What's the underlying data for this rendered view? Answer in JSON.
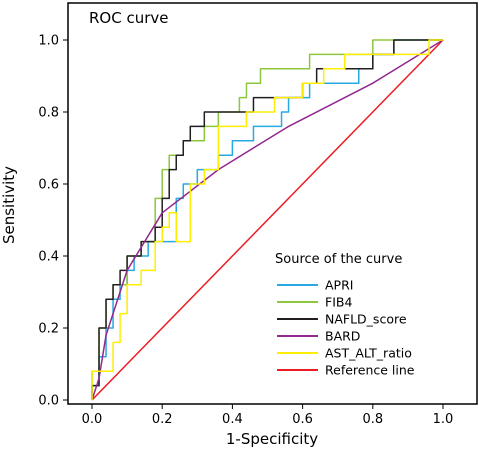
{
  "chart_data": {
    "type": "line",
    "title": "ROC curve",
    "xlabel": "1-Specificity",
    "ylabel": "Sensitivity",
    "xlim": [
      -0.02,
      1.0
    ],
    "ylim": [
      0.0,
      1.0
    ],
    "xticks": [
      0.0,
      0.2,
      0.4,
      0.6,
      0.8,
      1.0
    ],
    "yticks": [
      0.0,
      0.2,
      0.4,
      0.6,
      0.8,
      1.0
    ],
    "xtick_labels": [
      "0.0",
      "0.2",
      "0.4",
      "0.6",
      "0.8",
      "1.0"
    ],
    "ytick_labels": [
      "0.0",
      "0.2",
      "0.4",
      "0.6",
      "0.8",
      "1.0"
    ],
    "grid": false,
    "legend_title": "Source of the curve",
    "legend_position": "lower-right",
    "series": [
      {
        "name": "APRI",
        "color": "#29a9e1",
        "points": [
          [
            0,
            0
          ],
          [
            0,
            0.04
          ],
          [
            0.02,
            0.04
          ],
          [
            0.02,
            0.12
          ],
          [
            0.04,
            0.12
          ],
          [
            0.04,
            0.2
          ],
          [
            0.06,
            0.2
          ],
          [
            0.06,
            0.28
          ],
          [
            0.08,
            0.28
          ],
          [
            0.08,
            0.32
          ],
          [
            0.1,
            0.32
          ],
          [
            0.1,
            0.36
          ],
          [
            0.12,
            0.36
          ],
          [
            0.12,
            0.4
          ],
          [
            0.16,
            0.4
          ],
          [
            0.16,
            0.44
          ],
          [
            0.24,
            0.44
          ],
          [
            0.24,
            0.56
          ],
          [
            0.26,
            0.56
          ],
          [
            0.26,
            0.6
          ],
          [
            0.3,
            0.6
          ],
          [
            0.3,
            0.64
          ],
          [
            0.36,
            0.64
          ],
          [
            0.36,
            0.68
          ],
          [
            0.4,
            0.68
          ],
          [
            0.4,
            0.72
          ],
          [
            0.46,
            0.72
          ],
          [
            0.46,
            0.76
          ],
          [
            0.54,
            0.76
          ],
          [
            0.54,
            0.8
          ],
          [
            0.56,
            0.8
          ],
          [
            0.56,
            0.84
          ],
          [
            0.62,
            0.84
          ],
          [
            0.62,
            0.88
          ],
          [
            0.76,
            0.88
          ],
          [
            0.76,
            0.92
          ],
          [
            0.8,
            0.92
          ],
          [
            0.8,
            0.96
          ],
          [
            0.86,
            0.96
          ],
          [
            0.86,
            1.0
          ],
          [
            1.0,
            1.0
          ]
        ]
      },
      {
        "name": "FIB4",
        "color": "#8dc63f",
        "points": [
          [
            0,
            0
          ],
          [
            0,
            0.08
          ],
          [
            0.02,
            0.08
          ],
          [
            0.02,
            0.2
          ],
          [
            0.04,
            0.2
          ],
          [
            0.04,
            0.28
          ],
          [
            0.06,
            0.28
          ],
          [
            0.06,
            0.32
          ],
          [
            0.1,
            0.32
          ],
          [
            0.1,
            0.4
          ],
          [
            0.14,
            0.4
          ],
          [
            0.14,
            0.44
          ],
          [
            0.18,
            0.44
          ],
          [
            0.18,
            0.56
          ],
          [
            0.2,
            0.56
          ],
          [
            0.2,
            0.64
          ],
          [
            0.22,
            0.64
          ],
          [
            0.22,
            0.68
          ],
          [
            0.26,
            0.68
          ],
          [
            0.26,
            0.72
          ],
          [
            0.32,
            0.72
          ],
          [
            0.32,
            0.76
          ],
          [
            0.36,
            0.76
          ],
          [
            0.36,
            0.8
          ],
          [
            0.42,
            0.8
          ],
          [
            0.42,
            0.84
          ],
          [
            0.44,
            0.84
          ],
          [
            0.44,
            0.88
          ],
          [
            0.48,
            0.88
          ],
          [
            0.48,
            0.92
          ],
          [
            0.62,
            0.92
          ],
          [
            0.62,
            0.96
          ],
          [
            0.8,
            0.96
          ],
          [
            0.8,
            1.0
          ],
          [
            1.0,
            1.0
          ]
        ]
      },
      {
        "name": "NAFLD_score",
        "color": "#231f20",
        "points": [
          [
            0,
            0
          ],
          [
            0,
            0.04
          ],
          [
            0.02,
            0.04
          ],
          [
            0.02,
            0.2
          ],
          [
            0.04,
            0.2
          ],
          [
            0.04,
            0.28
          ],
          [
            0.06,
            0.28
          ],
          [
            0.06,
            0.32
          ],
          [
            0.08,
            0.32
          ],
          [
            0.08,
            0.36
          ],
          [
            0.1,
            0.36
          ],
          [
            0.1,
            0.4
          ],
          [
            0.14,
            0.4
          ],
          [
            0.14,
            0.44
          ],
          [
            0.18,
            0.44
          ],
          [
            0.18,
            0.48
          ],
          [
            0.2,
            0.48
          ],
          [
            0.2,
            0.56
          ],
          [
            0.22,
            0.56
          ],
          [
            0.22,
            0.64
          ],
          [
            0.24,
            0.64
          ],
          [
            0.24,
            0.68
          ],
          [
            0.26,
            0.68
          ],
          [
            0.26,
            0.72
          ],
          [
            0.28,
            0.72
          ],
          [
            0.28,
            0.76
          ],
          [
            0.32,
            0.76
          ],
          [
            0.32,
            0.8
          ],
          [
            0.46,
            0.8
          ],
          [
            0.46,
            0.84
          ],
          [
            0.6,
            0.84
          ],
          [
            0.6,
            0.88
          ],
          [
            0.64,
            0.88
          ],
          [
            0.64,
            0.92
          ],
          [
            0.8,
            0.92
          ],
          [
            0.8,
            0.96
          ],
          [
            0.86,
            0.96
          ],
          [
            0.86,
            1.0
          ],
          [
            1.0,
            1.0
          ]
        ]
      },
      {
        "name": "BARD",
        "color": "#92278f",
        "points": [
          [
            0,
            0
          ],
          [
            0.02,
            0.06
          ],
          [
            0.04,
            0.18
          ],
          [
            0.1,
            0.36
          ],
          [
            0.2,
            0.52
          ],
          [
            0.36,
            0.64
          ],
          [
            0.56,
            0.76
          ],
          [
            0.8,
            0.88
          ],
          [
            1.0,
            1.0
          ]
        ]
      },
      {
        "name": "AST_ALT_ratio",
        "color": "#ffee00",
        "points": [
          [
            0,
            0
          ],
          [
            0,
            0.08
          ],
          [
            0.06,
            0.08
          ],
          [
            0.06,
            0.16
          ],
          [
            0.08,
            0.16
          ],
          [
            0.08,
            0.24
          ],
          [
            0.1,
            0.24
          ],
          [
            0.1,
            0.32
          ],
          [
            0.14,
            0.32
          ],
          [
            0.14,
            0.36
          ],
          [
            0.18,
            0.36
          ],
          [
            0.18,
            0.44
          ],
          [
            0.2,
            0.44
          ],
          [
            0.2,
            0.48
          ],
          [
            0.22,
            0.48
          ],
          [
            0.22,
            0.52
          ],
          [
            0.24,
            0.52
          ],
          [
            0.24,
            0.44
          ],
          [
            0.28,
            0.44
          ],
          [
            0.28,
            0.6
          ],
          [
            0.32,
            0.6
          ],
          [
            0.32,
            0.64
          ],
          [
            0.36,
            0.64
          ],
          [
            0.36,
            0.76
          ],
          [
            0.44,
            0.76
          ],
          [
            0.44,
            0.8
          ],
          [
            0.52,
            0.8
          ],
          [
            0.52,
            0.84
          ],
          [
            0.6,
            0.84
          ],
          [
            0.6,
            0.88
          ],
          [
            0.66,
            0.88
          ],
          [
            0.66,
            0.92
          ],
          [
            0.72,
            0.92
          ],
          [
            0.72,
            0.96
          ],
          [
            0.96,
            0.96
          ],
          [
            0.96,
            1.0
          ],
          [
            1.0,
            1.0
          ]
        ]
      },
      {
        "name": "Reference line",
        "color": "#ed1c24",
        "points": [
          [
            0,
            0
          ],
          [
            1.0,
            1.0
          ]
        ]
      }
    ]
  }
}
